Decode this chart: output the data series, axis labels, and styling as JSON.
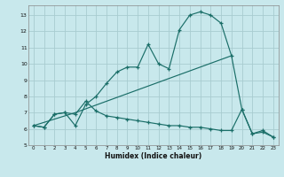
{
  "xlabel": "Humidex (Indice chaleur)",
  "background_color": "#c8e8ec",
  "grid_color": "#a8ccd0",
  "line_color": "#1a6e68",
  "xlim": [
    -0.5,
    23.5
  ],
  "ylim": [
    5,
    13.6
  ],
  "yticks": [
    5,
    6,
    7,
    8,
    9,
    10,
    11,
    12,
    13
  ],
  "xticks": [
    0,
    1,
    2,
    3,
    4,
    5,
    6,
    7,
    8,
    9,
    10,
    11,
    12,
    13,
    14,
    15,
    16,
    17,
    18,
    19,
    20,
    21,
    22,
    23
  ],
  "line1_x": [
    0,
    1,
    2,
    3,
    4,
    5,
    6,
    7,
    8,
    9,
    10,
    11,
    12,
    13,
    14,
    15,
    16,
    17,
    18,
    19,
    20,
    21,
    22,
    23
  ],
  "line1_y": [
    6.2,
    6.1,
    6.9,
    7.0,
    6.2,
    7.5,
    8.0,
    8.8,
    9.5,
    9.8,
    9.8,
    11.2,
    10.0,
    9.7,
    12.1,
    13.0,
    13.2,
    13.0,
    12.5,
    10.5,
    7.2,
    5.7,
    5.9,
    5.5
  ],
  "line2_x": [
    0,
    1,
    2,
    3,
    4,
    5,
    6,
    7,
    8,
    9,
    10,
    11,
    12,
    13,
    14,
    15,
    16,
    17,
    18,
    19,
    20,
    21,
    22,
    23
  ],
  "line2_y": [
    6.2,
    6.1,
    6.9,
    7.0,
    6.9,
    7.7,
    7.1,
    6.8,
    6.7,
    6.6,
    6.5,
    6.4,
    6.3,
    6.2,
    6.2,
    6.1,
    6.1,
    6.0,
    5.9,
    5.9,
    7.2,
    5.7,
    5.8,
    5.5
  ],
  "line3_x": [
    0,
    4,
    19
  ],
  "line3_y": [
    6.2,
    7.0,
    10.5
  ]
}
